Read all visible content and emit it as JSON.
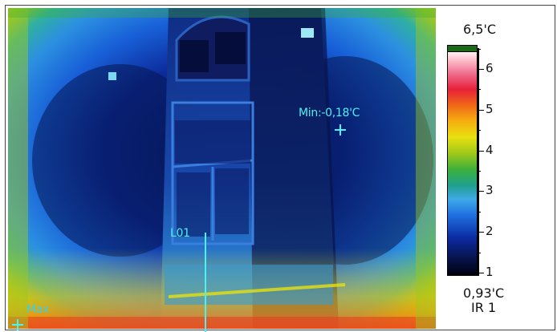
{
  "thermal_image": {
    "icon": "thermal-building-facade",
    "palette": [
      "#000010",
      "#0a2aa0",
      "#1f6fe0",
      "#3fa8e8",
      "#3cb03a",
      "#e8e010",
      "#f06818",
      "#e8203a"
    ]
  },
  "markers": {
    "min_label": "Min:-0,18'C",
    "max_label": "Max",
    "line_label": "L01"
  },
  "scale": {
    "max_label": "6,5'C",
    "min_label": "0,93'C",
    "mode_label": "IR 1",
    "ticks": [
      {
        "label": "6",
        "value": 6
      },
      {
        "label": "5",
        "value": 5
      },
      {
        "label": "4",
        "value": 4
      },
      {
        "label": "3",
        "value": 3
      },
      {
        "label": "2",
        "value": 2
      },
      {
        "label": "1",
        "value": 1
      }
    ],
    "top_color": "#1a6a1a"
  }
}
